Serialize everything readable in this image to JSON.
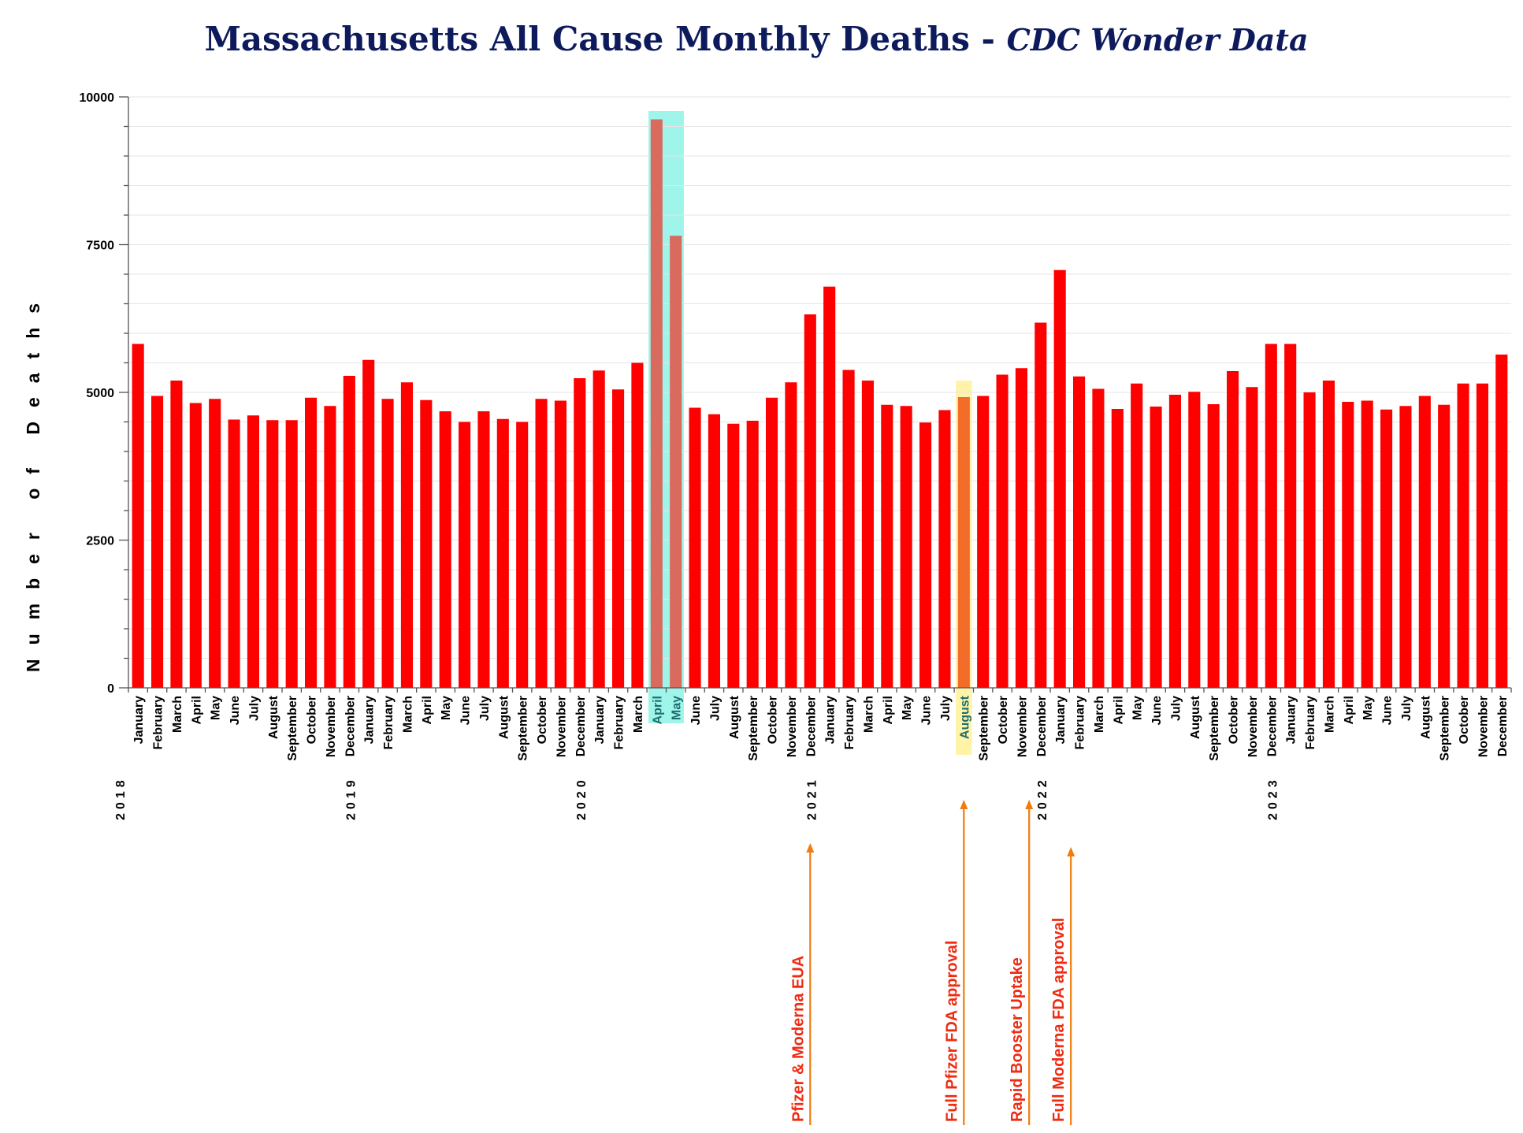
{
  "chart_data": {
    "type": "bar",
    "title": "Massachusetts All Cause Monthly Deaths - ",
    "subtitle": "CDC Wonder Data",
    "xlabel": "",
    "ylabel": "Number of Deaths",
    "ylim": [
      0,
      10000
    ],
    "yticks": [
      "0",
      "2500",
      "5000",
      "7500",
      "10000"
    ],
    "grid": true,
    "categories": [
      "January",
      "February",
      "March",
      "April",
      "May",
      "June",
      "July",
      "August",
      "September",
      "October",
      "November",
      "December",
      "January",
      "February",
      "March",
      "April",
      "May",
      "June",
      "July",
      "August",
      "September",
      "October",
      "November",
      "December",
      "January",
      "February",
      "March",
      "April",
      "May",
      "June",
      "July",
      "August",
      "September",
      "October",
      "November",
      "December",
      "January",
      "February",
      "March",
      "April",
      "May",
      "June",
      "July",
      "August",
      "September",
      "October",
      "November",
      "December",
      "January",
      "February",
      "March",
      "April",
      "May",
      "June",
      "July",
      "August",
      "September",
      "October",
      "November",
      "December",
      "January",
      "February",
      "March",
      "April",
      "May",
      "June",
      "July",
      "August",
      "September",
      "October",
      "November",
      "December"
    ],
    "years": [
      {
        "label": "2018",
        "start_index": 0
      },
      {
        "label": "2019",
        "start_index": 12
      },
      {
        "label": "2020",
        "start_index": 24
      },
      {
        "label": "2021",
        "start_index": 36
      },
      {
        "label": "2022",
        "start_index": 48
      },
      {
        "label": "2023",
        "start_index": 60
      }
    ],
    "series": [
      {
        "name": "Monthly Deaths",
        "color": "#ff0000",
        "values": [
          5820,
          4940,
          5200,
          4820,
          4890,
          4540,
          4610,
          4530,
          4530,
          4910,
          4770,
          5280,
          5550,
          4890,
          5170,
          4870,
          4680,
          4500,
          4680,
          4550,
          4500,
          4890,
          4860,
          5240,
          5370,
          5050,
          5500,
          9620,
          7650,
          4740,
          4630,
          4470,
          4520,
          4910,
          5170,
          6320,
          6790,
          5380,
          5200,
          4790,
          4770,
          4490,
          4700,
          4920,
          4940,
          5300,
          5410,
          6180,
          7070,
          5270,
          5060,
          4720,
          5150,
          4760,
          4960,
          5010,
          4800,
          5360,
          5090,
          5820,
          5820,
          5000,
          5200,
          4840,
          4860,
          4710,
          4770,
          4940,
          4790,
          5150,
          5150,
          5640
        ]
      }
    ],
    "highlights": [
      {
        "indices": [
          27,
          28
        ],
        "color": "#9ff5ea"
      },
      {
        "indices": [
          43
        ],
        "color": "#fff3a8"
      }
    ],
    "annotations": [
      {
        "text": "Pfizer & Moderna EUA",
        "index": 35,
        "color": "#ef2b12",
        "arrow_color": "#f07c0e"
      },
      {
        "text": "Full Pfizer FDA approval",
        "index": 43,
        "color": "#ef2b12",
        "arrow_color": "#f07c0e"
      },
      {
        "text": "Rapid Booster Uptake",
        "index": 46,
        "color": "#ef2b12",
        "arrow_color": "#f07c0e"
      },
      {
        "text": "Full Moderna FDA approval",
        "index": 48,
        "color": "#ef2b12",
        "arrow_color": "#f07c0e"
      }
    ]
  }
}
